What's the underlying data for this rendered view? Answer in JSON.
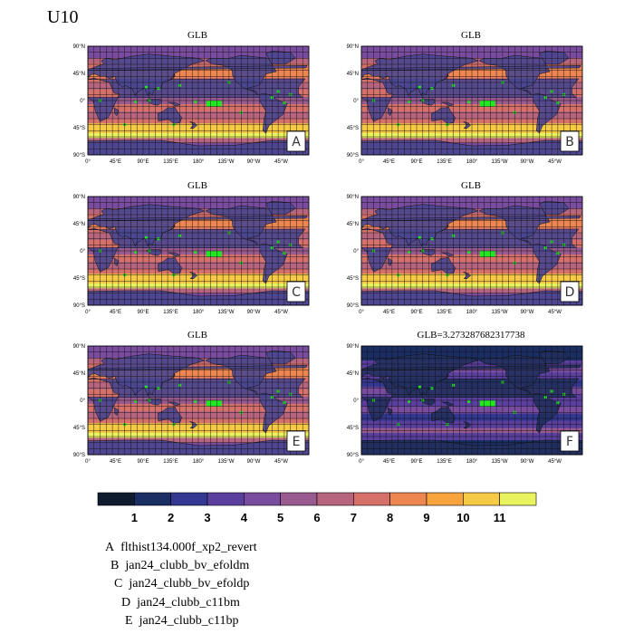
{
  "figure": {
    "variable_label": "U10",
    "panels": [
      {
        "id": "A",
        "title": "GLB",
        "badge": "A",
        "style": "abs"
      },
      {
        "id": "B",
        "title": "GLB",
        "badge": "B",
        "style": "abs"
      },
      {
        "id": "C",
        "title": "GLB",
        "badge": "C",
        "style": "abs"
      },
      {
        "id": "D",
        "title": "GLB",
        "badge": "D",
        "style": "abs"
      },
      {
        "id": "E",
        "title": "GLB",
        "badge": "E",
        "style": "abs"
      },
      {
        "id": "F",
        "title": "GLB=3.273287682317738",
        "badge": "F",
        "style": "diff"
      }
    ],
    "lat_ticks": [
      "90°N",
      "45°N",
      "0°",
      "45°S",
      "90°S"
    ],
    "lon_ticks": [
      "0°",
      "45°E",
      "90°E",
      "135°E",
      "180°",
      "135°W",
      "90°W",
      "45°W"
    ],
    "colorbar": {
      "colors": [
        "#0f1b2f",
        "#1b2e63",
        "#343891",
        "#5a3f9f",
        "#7a4c9f",
        "#985a8f",
        "#b7647f",
        "#d6706a",
        "#ee8652",
        "#f7a43f",
        "#f6ca45",
        "#e9f35f"
      ],
      "labels": [
        "1",
        "2",
        "3",
        "4",
        "5",
        "6",
        "7",
        "8",
        "9",
        "10",
        "11"
      ]
    },
    "legend": [
      {
        "key": "A",
        "case": "flthist134.000f_xp2_revert"
      },
      {
        "key": "B",
        "case": "jan24_clubb_bv_efoldm"
      },
      {
        "key": "C",
        "case": "jan24_clubb_bv_efoldp"
      },
      {
        "key": "D",
        "case": "jan24_clubb_c11bm"
      },
      {
        "key": "E",
        "case": "jan24_clubb_c11bp"
      }
    ]
  }
}
